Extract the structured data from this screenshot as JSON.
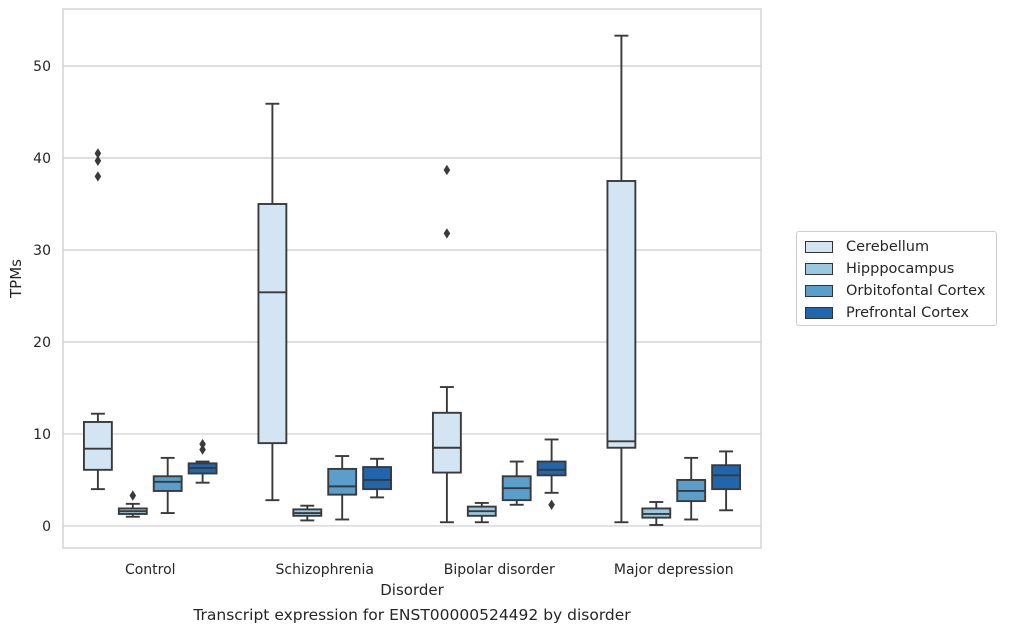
{
  "chart_data": {
    "type": "box",
    "title": "Transcript expression for ENST00000524492 by disorder",
    "xlabel": "Disorder",
    "ylabel": "TPMs",
    "ylim": [
      -2.4,
      56.2
    ],
    "yticks": [
      0,
      10,
      20,
      30,
      40,
      50
    ],
    "grid": true,
    "legend_position": "right",
    "categories": [
      "Control",
      "Schizophrenia",
      "Bipolar disorder",
      "Major depression"
    ],
    "series": [
      {
        "name": "Cerebellum",
        "color": "#d3e4f3",
        "boxes": [
          {
            "whislo": 4.0,
            "q1": 6.1,
            "med": 8.4,
            "q3": 11.3,
            "whishi": 12.2,
            "fliers": [
              38.0,
              39.7,
              40.5
            ]
          },
          {
            "whislo": 2.8,
            "q1": 9.0,
            "med": 25.4,
            "q3": 35.0,
            "whishi": 45.9,
            "fliers": []
          },
          {
            "whislo": 0.4,
            "q1": 5.8,
            "med": 8.5,
            "q3": 12.3,
            "whishi": 15.1,
            "fliers": [
              31.8,
              38.7
            ]
          },
          {
            "whislo": 0.4,
            "q1": 8.5,
            "med": 9.2,
            "q3": 37.5,
            "whishi": 53.3,
            "fliers": []
          }
        ]
      },
      {
        "name": "Hipppocampus",
        "color": "#9ac8e0",
        "boxes": [
          {
            "whislo": 1.0,
            "q1": 1.3,
            "med": 1.6,
            "q3": 1.9,
            "whishi": 2.4,
            "fliers": [
              3.3
            ]
          },
          {
            "whislo": 0.6,
            "q1": 1.1,
            "med": 1.4,
            "q3": 1.8,
            "whishi": 2.2,
            "fliers": []
          },
          {
            "whislo": 0.4,
            "q1": 1.1,
            "med": 1.6,
            "q3": 2.1,
            "whishi": 2.5,
            "fliers": []
          },
          {
            "whislo": 0.1,
            "q1": 0.9,
            "med": 1.3,
            "q3": 1.9,
            "whishi": 2.6,
            "fliers": []
          }
        ]
      },
      {
        "name": "Orbitofontal Cortex",
        "color": "#5a9fcb",
        "boxes": [
          {
            "whislo": 1.4,
            "q1": 3.8,
            "med": 4.8,
            "q3": 5.4,
            "whishi": 7.4,
            "fliers": []
          },
          {
            "whislo": 0.7,
            "q1": 3.4,
            "med": 4.3,
            "q3": 6.2,
            "whishi": 7.6,
            "fliers": []
          },
          {
            "whislo": 2.3,
            "q1": 2.8,
            "med": 4.1,
            "q3": 5.4,
            "whishi": 7.0,
            "fliers": []
          },
          {
            "whislo": 0.7,
            "q1": 2.7,
            "med": 3.8,
            "q3": 5.0,
            "whishi": 7.4,
            "fliers": []
          }
        ]
      },
      {
        "name": "Prefrontal Cortex",
        "color": "#2166ac",
        "boxes": [
          {
            "whislo": 4.7,
            "q1": 5.7,
            "med": 6.3,
            "q3": 6.8,
            "whishi": 7.0,
            "fliers": [
              8.3,
              8.9
            ]
          },
          {
            "whislo": 3.1,
            "q1": 4.0,
            "med": 5.0,
            "q3": 6.4,
            "whishi": 7.3,
            "fliers": []
          },
          {
            "whislo": 3.6,
            "q1": 5.5,
            "med": 6.1,
            "q3": 7.0,
            "whishi": 9.4,
            "fliers": [
              2.3
            ]
          },
          {
            "whislo": 1.7,
            "q1": 4.0,
            "med": 5.5,
            "q3": 6.6,
            "whishi": 8.1,
            "fliers": []
          }
        ]
      }
    ]
  }
}
